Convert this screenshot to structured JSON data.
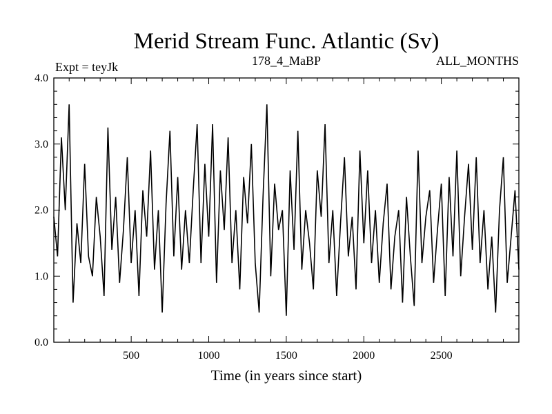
{
  "chart_data": {
    "type": "line",
    "title": "Merid Stream Func. Atlantic (Sv)",
    "subtitle_left": "Expt = teyJk",
    "subtitle_center": "178_4_MaBP",
    "subtitle_right": "ALL_MONTHS",
    "xlabel": "Time (in years since start)",
    "ylabel": "",
    "xlim": [
      1,
      3000
    ],
    "ylim": [
      0,
      4
    ],
    "xticks": [
      500,
      1000,
      1500,
      2000,
      2500
    ],
    "xtick_labels": [
      "500",
      "1000",
      "1500",
      "2000",
      "2500"
    ],
    "yticks": [
      0,
      1,
      2,
      3,
      4
    ],
    "ytick_labels": [
      "0.0",
      "1.0",
      "2.0",
      "3.0",
      "4.0"
    ],
    "grid": false,
    "series": [
      {
        "color": "#000000",
        "x": [
          1,
          25,
          50,
          75,
          100,
          125,
          150,
          175,
          200,
          225,
          250,
          275,
          300,
          325,
          350,
          375,
          400,
          425,
          450,
          475,
          500,
          525,
          550,
          575,
          600,
          625,
          650,
          675,
          700,
          725,
          750,
          775,
          800,
          825,
          850,
          875,
          900,
          925,
          950,
          975,
          1000,
          1025,
          1050,
          1075,
          1100,
          1125,
          1150,
          1175,
          1200,
          1225,
          1250,
          1275,
          1300,
          1325,
          1350,
          1375,
          1400,
          1425,
          1450,
          1475,
          1500,
          1525,
          1550,
          1575,
          1600,
          1625,
          1650,
          1675,
          1700,
          1725,
          1750,
          1775,
          1800,
          1825,
          1850,
          1875,
          1900,
          1925,
          1950,
          1975,
          2000,
          2025,
          2050,
          2075,
          2100,
          2125,
          2150,
          2175,
          2200,
          2225,
          2250,
          2275,
          2300,
          2325,
          2350,
          2375,
          2400,
          2425,
          2450,
          2475,
          2500,
          2525,
          2550,
          2575,
          2600,
          2625,
          2650,
          2675,
          2700,
          2725,
          2750,
          2775,
          2800,
          2825,
          2850,
          2875,
          2900,
          2925,
          2950,
          2975,
          3000
        ],
        "y": [
          1.9,
          1.3,
          3.1,
          2.0,
          3.6,
          0.6,
          1.8,
          1.2,
          2.7,
          1.3,
          1.0,
          2.2,
          1.6,
          0.7,
          3.25,
          1.4,
          2.2,
          0.9,
          1.7,
          2.8,
          1.2,
          2.0,
          0.7,
          2.3,
          1.6,
          2.9,
          1.1,
          2.0,
          0.45,
          2.1,
          3.2,
          1.3,
          2.5,
          1.1,
          2.0,
          1.2,
          2.3,
          3.3,
          1.2,
          2.7,
          1.6,
          3.3,
          0.9,
          2.6,
          1.7,
          3.1,
          1.2,
          2.0,
          0.8,
          2.5,
          1.8,
          3.0,
          1.2,
          0.45,
          2.2,
          3.6,
          1.0,
          2.4,
          1.7,
          2.0,
          0.4,
          2.6,
          1.4,
          3.2,
          1.1,
          2.0,
          1.5,
          0.8,
          2.6,
          1.9,
          3.3,
          1.2,
          2.0,
          0.7,
          1.8,
          2.8,
          1.3,
          1.9,
          0.8,
          2.9,
          1.5,
          2.6,
          1.2,
          2.0,
          0.9,
          1.8,
          2.4,
          0.8,
          1.6,
          2.0,
          0.6,
          2.2,
          1.3,
          0.55,
          2.9,
          1.2,
          1.9,
          2.3,
          0.9,
          1.7,
          2.4,
          0.7,
          2.5,
          1.3,
          2.9,
          1.0,
          1.9,
          2.7,
          1.4,
          2.8,
          1.2,
          2.0,
          0.8,
          1.6,
          0.45,
          2.0,
          2.8,
          0.9,
          1.6,
          2.3,
          1.1
        ]
      }
    ]
  }
}
